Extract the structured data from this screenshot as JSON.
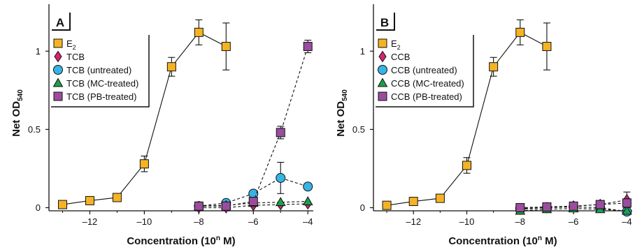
{
  "chart_data": [
    {
      "type": "line",
      "panel_label": "A",
      "xlabel": "Concentration (10n M)",
      "xlabel_main": "Concentration (10",
      "xlabel_sup": "n",
      "xlabel_end": " M)",
      "ylabel": "Net OD540",
      "ylabel_main": "Net OD",
      "ylabel_sub": "540",
      "xlim": [
        -13.5,
        -3.8
      ],
      "ylim": [
        -0.02,
        1.3
      ],
      "x_ticks": [
        -12,
        -10,
        -8,
        -6,
        -4
      ],
      "x_tick_labels": [
        "–12",
        "–10",
        "–8",
        "–6",
        "–4"
      ],
      "y_ticks": [
        0,
        0.5,
        1
      ],
      "y_tick_labels": [
        "0",
        "0.5",
        "1"
      ],
      "legend_position": "top-left",
      "series": [
        {
          "name": "E2",
          "name_main": "E",
          "name_sub": "2",
          "marker": "square",
          "color": "#f5b324",
          "line": "solid",
          "x": [
            -13,
            -12,
            -11,
            -10,
            -9,
            -8,
            -7
          ],
          "y": [
            0.02,
            0.045,
            0.065,
            0.28,
            0.9,
            1.12,
            1.03
          ],
          "err": [
            0,
            0,
            0,
            0.05,
            0.06,
            0.08,
            0.15
          ]
        },
        {
          "name": "TCB",
          "marker": "diamond",
          "color": "#d6246e",
          "line": "dashed",
          "x": [
            -8,
            -7,
            -6,
            -5,
            -4
          ],
          "y": [
            0.0,
            0.0,
            0.015,
            0.02,
            0.025
          ],
          "err": [
            0,
            0,
            0,
            0,
            0
          ]
        },
        {
          "name": "TCB (untreated)",
          "marker": "circle",
          "color": "#35b5e5",
          "line": "dashed",
          "x": [
            -8,
            -7,
            -6,
            -5,
            -4
          ],
          "y": [
            0.01,
            0.03,
            0.09,
            0.19,
            0.135
          ],
          "err": [
            0,
            0,
            0.02,
            0.1,
            0
          ]
        },
        {
          "name": "TCB (MC-treated)",
          "marker": "triangle",
          "color": "#1aa14a",
          "line": "dashed",
          "x": [
            -8,
            -7,
            -6,
            -5,
            -4
          ],
          "y": [
            0.01,
            0.015,
            0.03,
            0.035,
            0.04
          ],
          "err": [
            0,
            0,
            0,
            0,
            0
          ]
        },
        {
          "name": "TCB (PB-treated)",
          "marker": "square",
          "color": "#9a4d9e",
          "line": "dashed",
          "x": [
            -8,
            -7,
            -6,
            -5,
            -4
          ],
          "y": [
            0.01,
            0.01,
            0.04,
            0.48,
            1.03
          ],
          "err": [
            0,
            0,
            0,
            0.04,
            0.04
          ]
        }
      ]
    },
    {
      "type": "line",
      "panel_label": "B",
      "xlabel": "Concentration (10n M)",
      "xlabel_main": "Concentration (10",
      "xlabel_sup": "n",
      "xlabel_end": " M)",
      "ylabel": "Net OD540",
      "ylabel_main": "Net OD",
      "ylabel_sub": "540",
      "xlim": [
        -13.5,
        -3.8
      ],
      "ylim": [
        -0.02,
        1.3
      ],
      "x_ticks": [
        -12,
        -10,
        -8,
        -6,
        -4
      ],
      "x_tick_labels": [
        "–12",
        "–10",
        "–8",
        "–6",
        "–4"
      ],
      "y_ticks": [
        0,
        0.5,
        1
      ],
      "y_tick_labels": [
        "0",
        "0.5",
        "1"
      ],
      "legend_position": "top-left",
      "series": [
        {
          "name": "E2",
          "name_main": "E",
          "name_sub": "2",
          "marker": "square",
          "color": "#f5b324",
          "line": "solid",
          "x": [
            -13,
            -12,
            -11,
            -10,
            -9,
            -8,
            -7
          ],
          "y": [
            0.015,
            0.04,
            0.06,
            0.27,
            0.9,
            1.12,
            1.03
          ],
          "err": [
            0,
            0,
            0,
            0.05,
            0.06,
            0.08,
            0.15
          ]
        },
        {
          "name": "CCB",
          "marker": "diamond",
          "color": "#d6246e",
          "line": "dashed",
          "x": [
            -8,
            -7,
            -6,
            -5,
            -4
          ],
          "y": [
            -0.01,
            0.0,
            0.01,
            0.02,
            0.05
          ],
          "err": [
            0,
            0,
            0,
            0,
            0.05
          ]
        },
        {
          "name": "CCB (untreated)",
          "marker": "circle",
          "color": "#35b5e5",
          "line": "dashed",
          "x": [
            -8,
            -7,
            -6,
            -5,
            -4
          ],
          "y": [
            -0.005,
            0.0,
            0.005,
            0.0,
            -0.025
          ],
          "err": [
            0,
            0,
            0,
            0,
            0
          ]
        },
        {
          "name": "CCB (MC-treated)",
          "marker": "triangle",
          "color": "#1aa14a",
          "line": "dashed",
          "x": [
            -8,
            -7,
            -6,
            -5,
            -4
          ],
          "y": [
            -0.02,
            -0.01,
            -0.005,
            -0.01,
            -0.02
          ],
          "err": [
            0,
            0,
            0,
            0,
            0
          ]
        },
        {
          "name": "CCB (PB-treated)",
          "marker": "square",
          "color": "#9a4d9e",
          "line": "dashed",
          "x": [
            -8,
            -7,
            -6,
            -5,
            -4
          ],
          "y": [
            0.0,
            0.005,
            0.01,
            0.02,
            0.03
          ],
          "err": [
            0,
            0,
            0,
            0,
            0
          ]
        }
      ]
    }
  ]
}
